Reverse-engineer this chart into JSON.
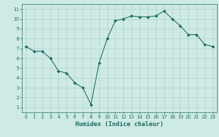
{
  "x": [
    0,
    1,
    2,
    3,
    4,
    5,
    6,
    7,
    8,
    9,
    10,
    11,
    12,
    13,
    14,
    15,
    16,
    17,
    18,
    19,
    20,
    21,
    22,
    23
  ],
  "y": [
    7.2,
    6.7,
    6.7,
    6.0,
    4.7,
    4.5,
    3.5,
    3.0,
    1.3,
    5.5,
    8.0,
    9.8,
    10.0,
    10.3,
    10.2,
    10.2,
    10.3,
    10.8,
    10.0,
    9.3,
    8.4,
    8.4,
    7.4,
    7.2
  ],
  "line_color": "#1a6b5a",
  "marker": "D",
  "marker_size": 2,
  "bg_color": "#ceeae6",
  "grid_color": "#aed0cc",
  "xlabel": "Humidex (Indice chaleur)",
  "xlim": [
    -0.5,
    23.5
  ],
  "ylim": [
    0.5,
    11.5
  ],
  "yticks": [
    1,
    2,
    3,
    4,
    5,
    6,
    7,
    8,
    9,
    10,
    11
  ],
  "xticks": [
    0,
    1,
    2,
    3,
    4,
    5,
    6,
    7,
    8,
    9,
    10,
    11,
    12,
    13,
    14,
    15,
    16,
    17,
    18,
    19,
    20,
    21,
    22,
    23
  ],
  "axis_color": "#1a6b5a",
  "tick_color": "#1a6b5a",
  "label_color": "#1a6b5a"
}
